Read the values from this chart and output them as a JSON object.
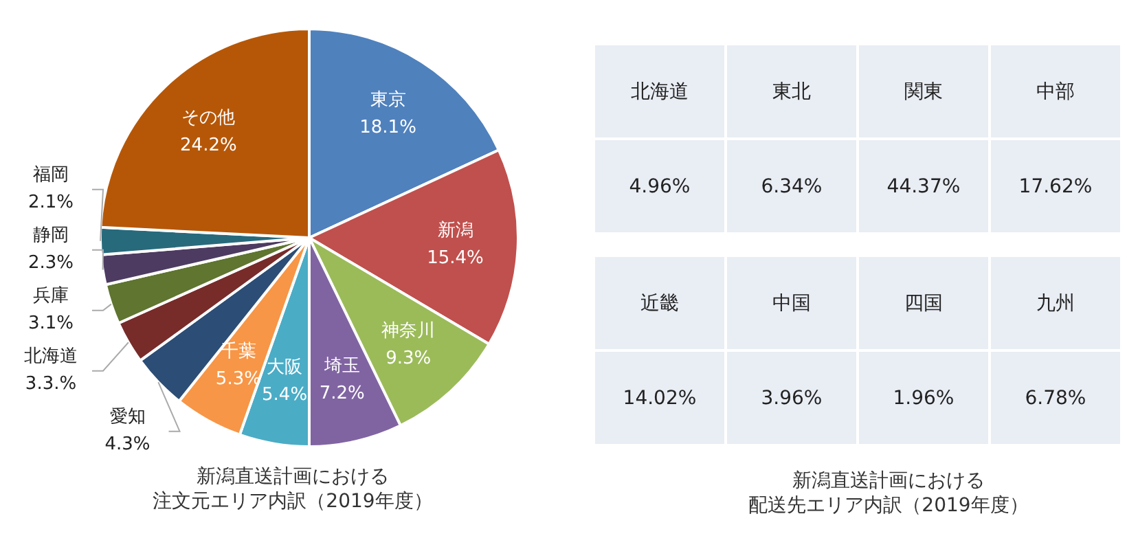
{
  "chart_data": [
    {
      "type": "pie",
      "title": "新潟直送計画における",
      "subtitle": "注文元エリア内訳（2019年度）",
      "categories": [
        "東京",
        "新潟",
        "神奈川",
        "埼玉",
        "大阪",
        "千葉",
        "愛知",
        "北海道",
        "兵庫",
        "静岡",
        "福岡",
        "その他"
      ],
      "values": [
        18.1,
        15.4,
        9.3,
        7.2,
        5.4,
        5.3,
        4.3,
        3.3,
        3.1,
        2.3,
        2.1,
        24.2
      ],
      "value_labels": [
        "18.1%",
        "15.4%",
        "9.3%",
        "7.2%",
        "5.4%",
        "5.3%",
        "4.3%",
        "3.3.%",
        "3.1%",
        "2.3%",
        "2.1%",
        "24.2%"
      ],
      "colors": [
        "#4f81bd",
        "#c0504d",
        "#9bbb59",
        "#8064a2",
        "#4bacc6",
        "#f79646",
        "#2c4d75",
        "#772c2a",
        "#5f7530",
        "#4d3b62",
        "#276a7c",
        "#b65708"
      ],
      "legend": false
    },
    {
      "type": "other",
      "title": "新潟直送計画における",
      "subtitle": "配送先エリア内訳（2019年度）",
      "categories": [
        "北海道",
        "東北",
        "関東",
        "中部",
        "近畿",
        "中国",
        "四国",
        "九州"
      ],
      "values": [
        4.96,
        6.34,
        44.37,
        17.62,
        14.02,
        3.96,
        1.96,
        6.78
      ],
      "value_labels": [
        "4.96%",
        "6.34%",
        "44.37%",
        "17.62%",
        "14.02%",
        "3.96%",
        "1.96%",
        "6.78%"
      ]
    }
  ]
}
